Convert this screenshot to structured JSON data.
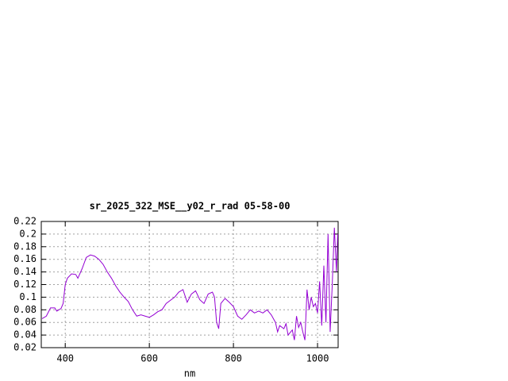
{
  "chart_data": {
    "type": "line",
    "title": "sr_2025_322_MSE__y02_r_rad 05-58-00",
    "x_label": "nm",
    "x": [
      345,
      355,
      365,
      375,
      380,
      390,
      395,
      400,
      405,
      415,
      425,
      430,
      440,
      450,
      460,
      470,
      480,
      490,
      500,
      510,
      520,
      530,
      540,
      550,
      560,
      570,
      580,
      590,
      600,
      610,
      620,
      630,
      640,
      650,
      660,
      670,
      680,
      690,
      700,
      710,
      720,
      730,
      740,
      750,
      755,
      760,
      765,
      770,
      780,
      790,
      800,
      810,
      820,
      830,
      840,
      850,
      860,
      870,
      880,
      890,
      900,
      905,
      910,
      920,
      925,
      930,
      940,
      945,
      950,
      955,
      960,
      965,
      970,
      975,
      980,
      985,
      990,
      995,
      1000,
      1005,
      1010,
      1015,
      1020,
      1025,
      1030,
      1035,
      1040,
      1045,
      1048
    ],
    "series": [
      {
        "color": "#9400d3",
        "values": [
          0.066,
          0.07,
          0.083,
          0.083,
          0.078,
          0.082,
          0.09,
          0.12,
          0.13,
          0.137,
          0.136,
          0.13,
          0.145,
          0.163,
          0.167,
          0.165,
          0.16,
          0.152,
          0.14,
          0.13,
          0.118,
          0.108,
          0.1,
          0.093,
          0.08,
          0.07,
          0.072,
          0.07,
          0.068,
          0.072,
          0.077,
          0.08,
          0.09,
          0.095,
          0.1,
          0.108,
          0.112,
          0.092,
          0.105,
          0.11,
          0.096,
          0.09,
          0.105,
          0.108,
          0.1,
          0.06,
          0.05,
          0.09,
          0.098,
          0.092,
          0.085,
          0.07,
          0.065,
          0.072,
          0.08,
          0.075,
          0.078,
          0.075,
          0.08,
          0.072,
          0.06,
          0.045,
          0.055,
          0.05,
          0.058,
          0.04,
          0.048,
          0.032,
          0.07,
          0.052,
          0.06,
          0.045,
          0.032,
          0.112,
          0.08,
          0.1,
          0.085,
          0.09,
          0.075,
          0.125,
          0.055,
          0.15,
          0.06,
          0.2,
          0.045,
          0.12,
          0.21,
          0.14,
          0.2
        ]
      }
    ],
    "xlim": [
      343,
      1049
    ],
    "ylim": [
      0.02,
      0.22
    ],
    "xticks": [
      400,
      600,
      800,
      1000
    ],
    "yticks": [
      0.02,
      0.04,
      0.06,
      0.08,
      0.1,
      0.12,
      0.14,
      0.16,
      0.18,
      0.2,
      0.22
    ],
    "grid": true
  }
}
